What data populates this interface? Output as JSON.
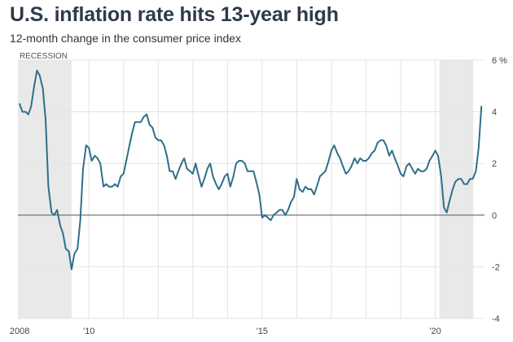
{
  "header": {
    "title": "U.S. inflation rate hits 13-year high",
    "subtitle": "12-month change in the consumer price index"
  },
  "colors": {
    "line": "#2f6f8a",
    "recession_fill": "#e9e9e9",
    "gridline": "#e3e3e3",
    "zero_line": "#666666",
    "title": "#2f3a4a"
  },
  "chart_data": {
    "type": "line",
    "title": "U.S. inflation rate hits 13-year high",
    "subtitle": "12-month change in the consumer price index",
    "xlim": [
      2007.95,
      2021.42
    ],
    "ylim": [
      -4,
      6
    ],
    "grid": true,
    "y_ticks": [
      {
        "value": 6,
        "label": "6 %"
      },
      {
        "value": 4,
        "label": "4"
      },
      {
        "value": 2,
        "label": "2"
      },
      {
        "value": 0,
        "label": "0"
      },
      {
        "value": -2,
        "label": "-2"
      },
      {
        "value": -4,
        "label": "-4"
      }
    ],
    "x_ticks": [
      {
        "value": 2008,
        "label": "2008"
      },
      {
        "value": 2010,
        "label": "'10"
      },
      {
        "value": 2015,
        "label": "'15"
      },
      {
        "value": 2020,
        "label": "'20"
      }
    ],
    "x_gridlines": [
      2010,
      2011,
      2012,
      2013,
      2014,
      2015,
      2016,
      2017,
      2018,
      2019,
      2020,
      2021
    ],
    "recessions": [
      {
        "start": 2007.95,
        "end": 2009.5,
        "label": "RECESSION"
      },
      {
        "start": 2020.12,
        "end": 2021.1,
        "label": ""
      }
    ],
    "series": [
      {
        "x": [
          2008.0,
          2008.08,
          2008.17,
          2008.25,
          2008.33,
          2008.42,
          2008.5,
          2008.58,
          2008.67,
          2008.75,
          2008.83,
          2008.92,
          2009.0,
          2009.08,
          2009.17,
          2009.25,
          2009.33,
          2009.42,
          2009.5,
          2009.58,
          2009.67,
          2009.75,
          2009.83,
          2009.92,
          2010.0,
          2010.08,
          2010.17,
          2010.25,
          2010.33,
          2010.42,
          2010.5,
          2010.58,
          2010.67,
          2010.75,
          2010.83,
          2010.92,
          2011.0,
          2011.08,
          2011.17,
          2011.25,
          2011.33,
          2011.42,
          2011.5,
          2011.58,
          2011.67,
          2011.75,
          2011.83,
          2011.92,
          2012.0,
          2012.08,
          2012.17,
          2012.25,
          2012.33,
          2012.42,
          2012.5,
          2012.58,
          2012.67,
          2012.75,
          2012.83,
          2012.92,
          2013.0,
          2013.08,
          2013.17,
          2013.25,
          2013.33,
          2013.42,
          2013.5,
          2013.58,
          2013.67,
          2013.75,
          2013.83,
          2013.92,
          2014.0,
          2014.08,
          2014.17,
          2014.25,
          2014.33,
          2014.42,
          2014.5,
          2014.58,
          2014.67,
          2014.75,
          2014.83,
          2014.92,
          2015.0,
          2015.08,
          2015.17,
          2015.25,
          2015.33,
          2015.42,
          2015.5,
          2015.58,
          2015.67,
          2015.75,
          2015.83,
          2015.92,
          2016.0,
          2016.08,
          2016.17,
          2016.25,
          2016.33,
          2016.42,
          2016.5,
          2016.58,
          2016.67,
          2016.75,
          2016.83,
          2016.92,
          2017.0,
          2017.08,
          2017.17,
          2017.25,
          2017.33,
          2017.42,
          2017.5,
          2017.58,
          2017.67,
          2017.75,
          2017.83,
          2017.92,
          2018.0,
          2018.08,
          2018.17,
          2018.25,
          2018.33,
          2018.42,
          2018.5,
          2018.58,
          2018.67,
          2018.75,
          2018.83,
          2018.92,
          2019.0,
          2019.08,
          2019.17,
          2019.25,
          2019.33,
          2019.42,
          2019.5,
          2019.58,
          2019.67,
          2019.75,
          2019.83,
          2019.92,
          2020.0,
          2020.08,
          2020.17,
          2020.25,
          2020.33,
          2020.42,
          2020.5,
          2020.58,
          2020.67,
          2020.75,
          2020.83,
          2020.92,
          2021.0,
          2021.08,
          2021.17,
          2021.25,
          2021.33
        ],
        "values": [
          4.3,
          4.0,
          4.0,
          3.9,
          4.2,
          5.0,
          5.6,
          5.4,
          4.9,
          3.7,
          1.1,
          0.1,
          0.0,
          0.2,
          -0.4,
          -0.7,
          -1.3,
          -1.4,
          -2.1,
          -1.5,
          -1.3,
          -0.2,
          1.8,
          2.7,
          2.6,
          2.1,
          2.3,
          2.2,
          2.0,
          1.1,
          1.2,
          1.1,
          1.1,
          1.2,
          1.1,
          1.5,
          1.6,
          2.1,
          2.7,
          3.2,
          3.6,
          3.6,
          3.6,
          3.8,
          3.9,
          3.5,
          3.4,
          3.0,
          2.9,
          2.9,
          2.7,
          2.3,
          1.7,
          1.7,
          1.4,
          1.7,
          2.0,
          2.2,
          1.8,
          1.7,
          1.6,
          2.0,
          1.5,
          1.1,
          1.4,
          1.8,
          2.0,
          1.5,
          1.2,
          1.0,
          1.2,
          1.5,
          1.6,
          1.1,
          1.5,
          2.0,
          2.1,
          2.1,
          2.0,
          1.7,
          1.7,
          1.7,
          1.3,
          0.8,
          -0.1,
          0.0,
          -0.1,
          -0.2,
          0.0,
          0.1,
          0.2,
          0.2,
          0.0,
          0.2,
          0.5,
          0.7,
          1.4,
          1.0,
          0.9,
          1.1,
          1.0,
          1.0,
          0.8,
          1.1,
          1.5,
          1.6,
          1.7,
          2.1,
          2.5,
          2.7,
          2.4,
          2.2,
          1.9,
          1.6,
          1.7,
          1.9,
          2.2,
          2.0,
          2.2,
          2.1,
          2.1,
          2.2,
          2.4,
          2.5,
          2.8,
          2.9,
          2.9,
          2.7,
          2.3,
          2.5,
          2.2,
          1.9,
          1.6,
          1.5,
          1.9,
          2.0,
          1.8,
          1.6,
          1.8,
          1.7,
          1.7,
          1.8,
          2.1,
          2.3,
          2.5,
          2.3,
          1.5,
          0.3,
          0.1,
          0.6,
          1.0,
          1.3,
          1.4,
          1.4,
          1.2,
          1.2,
          1.4,
          1.4,
          1.7,
          2.6,
          4.2
        ]
      }
    ]
  }
}
